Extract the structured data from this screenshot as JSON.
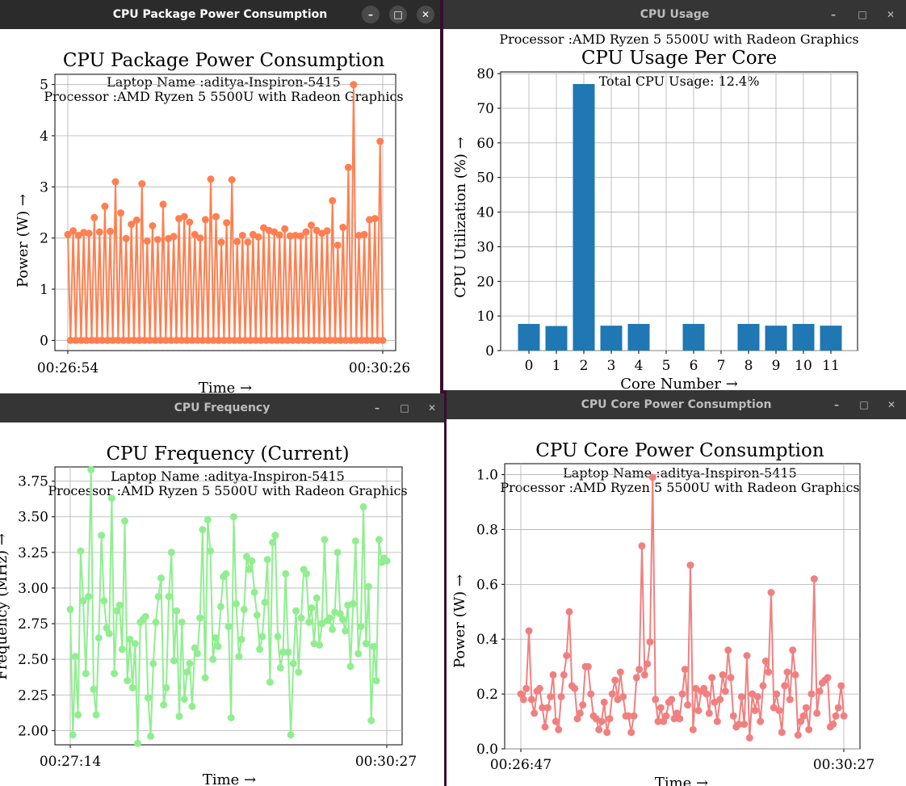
{
  "windows": {
    "package": {
      "title": "CPU Package Power Consumption",
      "active": true
    },
    "usage": {
      "title": "CPU Usage",
      "active": false
    },
    "frequency": {
      "title": "CPU Frequency",
      "active": false
    },
    "core": {
      "title": "CPU Core Power Consumption",
      "active": false
    }
  },
  "window_buttons": {
    "minimize": "–",
    "maximize": "□",
    "close": "✕"
  },
  "chart_data": [
    {
      "id": "package",
      "type": "line",
      "title": "CPU Package Power Consumption",
      "annotations": [
        "Laptop Name :aditya-Inspiron-5415",
        "Processor :AMD Ryzen 5 5500U with Radeon Graphics"
      ],
      "xlabel": "Time →",
      "ylabel": "Power (W) →",
      "x_tick_labels": [
        "00:26:54",
        "00:30:26"
      ],
      "yticks": [
        0,
        1,
        2,
        3,
        4,
        5
      ],
      "ylim": [
        -0.2,
        5.2
      ],
      "grid": true,
      "color": "#ff7f50",
      "values": [
        2.07,
        0,
        2.14,
        0,
        2.05,
        0,
        2.11,
        0,
        2.09,
        0,
        2.4,
        0,
        2.12,
        0,
        2.62,
        0,
        2.13,
        0,
        3.1,
        0,
        2.49,
        0,
        1.99,
        0,
        2.27,
        0,
        2.35,
        0,
        3.06,
        0,
        1.94,
        0,
        2.24,
        0,
        1.97,
        0,
        2.66,
        0,
        1.99,
        0,
        2.03,
        0,
        2.38,
        0,
        2.42,
        0,
        2.31,
        0,
        2.07,
        0,
        2.0,
        0,
        2.36,
        0,
        3.15,
        0,
        2.42,
        0,
        1.92,
        0,
        2.3,
        0,
        3.14,
        0,
        1.93,
        0,
        2.05,
        0,
        1.92,
        0,
        2.07,
        0,
        2.02,
        0,
        2.2,
        0,
        2.15,
        0,
        2.12,
        0,
        2.06,
        0,
        2.18,
        0,
        2.04,
        0,
        2.05,
        0,
        2.04,
        0,
        2.12,
        0,
        2.25,
        0,
        2.15,
        0,
        2.09,
        0,
        2.14,
        0,
        2.73,
        0,
        1.86,
        0,
        2.21,
        0,
        3.38,
        0,
        5.0,
        0,
        2.05,
        0,
        2.07,
        0,
        2.36,
        0,
        2.38,
        0,
        3.89,
        0
      ]
    },
    {
      "id": "usage",
      "type": "bar",
      "title": "CPU Usage Per Core",
      "annotations": [
        "Processor :AMD Ryzen 5 5500U with Radeon Graphics",
        "Total CPU Usage: 12.4%"
      ],
      "xlabel": "Core Number →",
      "ylabel": "CPU Utilization (%) →",
      "categories": [
        "0",
        "1",
        "2",
        "3",
        "4",
        "5",
        "6",
        "7",
        "8",
        "9",
        "10",
        "11"
      ],
      "values": [
        7.7,
        7.1,
        77.0,
        7.2,
        7.7,
        0,
        7.7,
        0,
        7.7,
        7.2,
        7.7,
        7.2
      ],
      "yticks": [
        0,
        10,
        20,
        30,
        40,
        50,
        60,
        70,
        80
      ],
      "ylim": [
        0,
        80.5
      ],
      "grid": true,
      "color": "#1f77b4"
    },
    {
      "id": "frequency",
      "type": "line",
      "title": "CPU Frequency (Current)",
      "annotations": [
        "Laptop Name :aditya-Inspiron-5415",
        "Processor :AMD Ryzen 5 5500U with Radeon Graphics"
      ],
      "xlabel": "Time →",
      "ylabel": "Frequency (MHz) →",
      "x_tick_labels": [
        "00:27:14",
        "00:30:27"
      ],
      "yticks": [
        2.0,
        2.25,
        2.5,
        2.75,
        3.0,
        3.25,
        3.5,
        3.75
      ],
      "ytick_labels": [
        "2.00",
        "2.25",
        "2.50",
        "2.75",
        "3.00",
        "3.25",
        "3.50",
        "3.75"
      ],
      "ylim": [
        1.9,
        3.85
      ],
      "grid": true,
      "color": "#90ee90",
      "values": [
        2.85,
        1.97,
        2.52,
        2.11,
        3.26,
        2.91,
        2.4,
        2.94,
        3.83,
        2.29,
        2.11,
        2.65,
        3.37,
        2.91,
        2.72,
        2.68,
        3.63,
        2.4,
        2.84,
        2.88,
        2.57,
        3.47,
        2.35,
        2.64,
        2.3,
        2.61,
        1.91,
        2.76,
        2.78,
        2.8,
        2.23,
        1.96,
        2.47,
        2.76,
        2.94,
        3.07,
        2.18,
        2.3,
        2.94,
        3.25,
        2.49,
        2.84,
        2.1,
        2.76,
        2.22,
        2.41,
        2.47,
        2.17,
        2.58,
        2.54,
        2.79,
        3.41,
        2.37,
        3.48,
        3.26,
        2.5,
        2.65,
        2.59,
        2.87,
        3.08,
        3.1,
        2.73,
        2.09,
        3.5,
        2.89,
        2.52,
        2.64,
        2.85,
        3.22,
        3.13,
        3.19,
        2.97,
        2.81,
        2.57,
        2.66,
        2.9,
        3.2,
        2.34,
        3.32,
        3.37,
        2.66,
        2.44,
        2.55,
        3.1,
        2.55,
        1.97,
        2.47,
        2.84,
        2.41,
        2.79,
        3.13,
        3.1,
        2.76,
        2.86,
        2.61,
        2.93,
        2.6,
        2.75,
        3.34,
        2.77,
        2.79,
        2.71,
        2.83,
        3.25,
        2.82,
        2.78,
        2.7,
        2.88,
        2.45,
        2.89,
        3.33,
        2.54,
        2.73,
        3.57,
        2.61,
        3.01,
        2.07,
        2.59,
        2.35,
        3.34,
        3.18,
        3.21,
        3.19
      ]
    },
    {
      "id": "core",
      "type": "line",
      "title": "CPU Core Power Consumption",
      "annotations": [
        "Laptop Name :aditya-Inspiron-5415",
        "Processor :AMD Ryzen 5 5500U with Radeon Graphics"
      ],
      "xlabel": "Time →",
      "ylabel": "Power (W) →",
      "x_tick_labels": [
        "00:26:47",
        "00:30:27"
      ],
      "yticks": [
        0.0,
        0.2,
        0.4,
        0.6,
        0.8,
        1.0
      ],
      "ytick_labels": [
        "0.0",
        "0.2",
        "0.4",
        "0.6",
        "0.8",
        "1.0"
      ],
      "ylim": [
        0.0,
        1.04
      ],
      "grid": true,
      "color": "#f08080",
      "values": [
        0.2,
        0.18,
        0.22,
        0.43,
        0.18,
        0.13,
        0.21,
        0.22,
        0.15,
        0.08,
        0.15,
        0.19,
        0.27,
        0.1,
        0.07,
        0.19,
        0.27,
        0.34,
        0.5,
        0.23,
        0.22,
        0.11,
        0.13,
        0.16,
        0.3,
        0.3,
        0.2,
        0.12,
        0.11,
        0.07,
        0.1,
        0.17,
        0.06,
        0.11,
        0.2,
        0.25,
        0.18,
        0.28,
        0.19,
        0.12,
        0.12,
        0.06,
        0.12,
        0.26,
        0.29,
        0.74,
        0.27,
        0.31,
        0.39,
        0.99,
        0.18,
        0.1,
        0.15,
        0.1,
        0.12,
        0.17,
        0.18,
        0.11,
        0.13,
        0.11,
        0.2,
        0.29,
        0.16,
        0.67,
        0.07,
        0.22,
        0.14,
        0.21,
        0.22,
        0.2,
        0.13,
        0.26,
        0.17,
        0.1,
        0.18,
        0.27,
        0.21,
        0.36,
        0.26,
        0.12,
        0.08,
        0.09,
        0.19,
        0.09,
        0.34,
        0.04,
        0.2,
        0.14,
        0.19,
        0.1,
        0.23,
        0.32,
        0.28,
        0.57,
        0.15,
        0.2,
        0.14,
        0.06,
        0.23,
        0.28,
        0.18,
        0.36,
        0.27,
        0.05,
        0.1,
        0.12,
        0.15,
        0.07,
        0.2,
        0.62,
        0.13,
        0.21,
        0.24,
        0.25,
        0.26,
        0.08,
        0.09,
        0.12,
        0.15,
        0.23,
        0.12
      ]
    }
  ]
}
